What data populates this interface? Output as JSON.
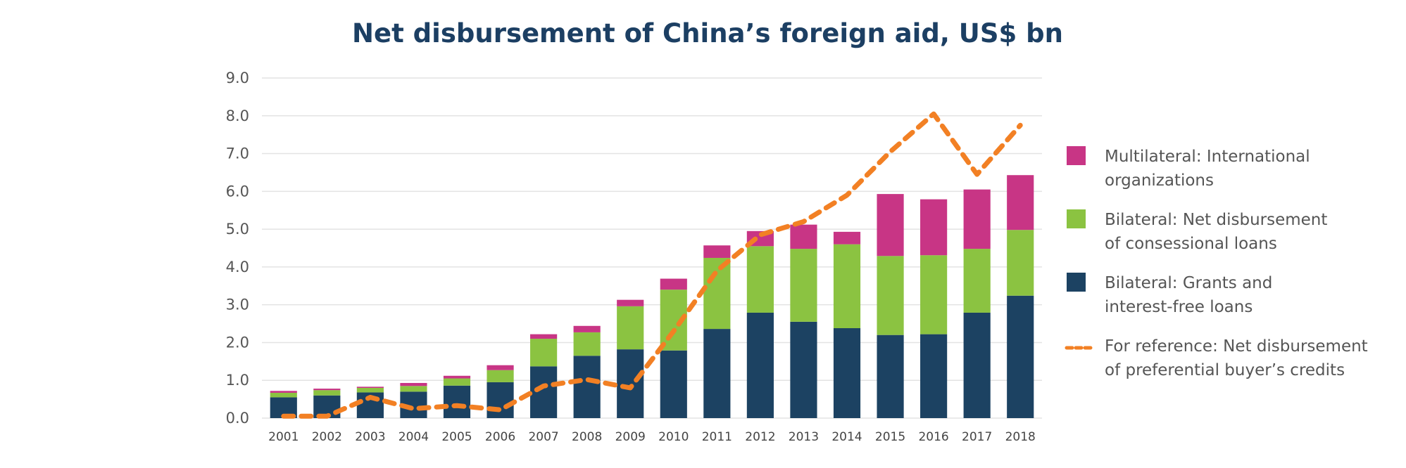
{
  "chart_data": {
    "type": "bar",
    "stacked": true,
    "title": "Net disbursement of China’s foreign aid, US$ bn",
    "xlabel": "",
    "ylabel": "",
    "ylim": [
      0,
      9
    ],
    "yticks": [
      "0.0",
      "1.0",
      "2.0",
      "3.0",
      "4.0",
      "5.0",
      "6.0",
      "7.0",
      "8.0",
      "9.0"
    ],
    "grid": true,
    "legend_position": "right",
    "categories": [
      "2001",
      "2002",
      "2003",
      "2004",
      "2005",
      "2006",
      "2007",
      "2008",
      "2009",
      "2010",
      "2011",
      "2012",
      "2013",
      "2014",
      "2015",
      "2016",
      "2017",
      "2018"
    ],
    "series": [
      {
        "name": "Bilateral: Grants and interest-free loans",
        "type": "bar",
        "color": "#1c4262",
        "values": [
          0.55,
          0.6,
          0.68,
          0.7,
          0.86,
          0.95,
          1.37,
          1.65,
          1.82,
          1.79,
          2.36,
          2.79,
          2.55,
          2.38,
          2.2,
          2.22,
          2.79,
          3.24
        ]
      },
      {
        "name": "Bilateral: Net disbursement of consessional loans",
        "type": "bar",
        "color": "#8bc341",
        "values": [
          0.12,
          0.14,
          0.12,
          0.15,
          0.19,
          0.32,
          0.73,
          0.62,
          1.14,
          1.61,
          1.88,
          1.76,
          1.93,
          2.22,
          2.09,
          2.09,
          1.69,
          1.74
        ]
      },
      {
        "name": "Multilateral: International organizations",
        "type": "bar",
        "color": "#c83585",
        "values": [
          0.05,
          0.04,
          0.03,
          0.08,
          0.07,
          0.13,
          0.12,
          0.17,
          0.17,
          0.29,
          0.33,
          0.4,
          0.64,
          0.33,
          1.64,
          1.48,
          1.57,
          1.45
        ]
      },
      {
        "name": "For reference: Net disbursement of preferential buyer’s credits",
        "type": "line",
        "style": "dashed",
        "color": "#f28024",
        "values": [
          0.05,
          0.05,
          0.55,
          0.25,
          0.33,
          0.22,
          0.85,
          1.02,
          0.8,
          2.3,
          3.9,
          4.85,
          5.2,
          5.9,
          7.05,
          8.05,
          6.45,
          7.75
        ]
      }
    ],
    "legend": [
      {
        "line1": "Multilateral: International",
        "line2": "organizations",
        "color": "#c83585",
        "marker": "square"
      },
      {
        "line1": "Bilateral: Net disbursement",
        "line2": "of consessional loans",
        "color": "#8bc341",
        "marker": "square"
      },
      {
        "line1": "Bilateral: Grants and",
        "line2": "interest-free loans",
        "color": "#1c4262",
        "marker": "square"
      },
      {
        "line1": "For reference: Net disbursement",
        "line2": "of preferential buyer’s credits",
        "color": "#f28024",
        "marker": "dashed-line"
      }
    ]
  }
}
